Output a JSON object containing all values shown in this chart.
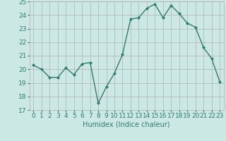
{
  "x": [
    0,
    1,
    2,
    3,
    4,
    5,
    6,
    7,
    8,
    9,
    10,
    11,
    12,
    13,
    14,
    15,
    16,
    17,
    18,
    19,
    20,
    21,
    22,
    23
  ],
  "y": [
    20.3,
    20.0,
    19.4,
    19.4,
    20.1,
    19.6,
    20.4,
    20.5,
    17.5,
    18.7,
    19.7,
    21.1,
    23.7,
    23.8,
    24.5,
    24.8,
    23.8,
    24.7,
    24.1,
    23.4,
    23.1,
    21.6,
    20.8,
    19.1
  ],
  "line_color": "#2e7d6e",
  "marker": "D",
  "marker_size": 2.0,
  "linewidth": 1.0,
  "xlabel": "Humidex (Indice chaleur)",
  "ylabel": "",
  "title": "",
  "xlim": [
    -0.5,
    23.5
  ],
  "ylim": [
    17,
    25
  ],
  "yticks": [
    17,
    18,
    19,
    20,
    21,
    22,
    23,
    24,
    25
  ],
  "xticks": [
    0,
    1,
    2,
    3,
    4,
    5,
    6,
    7,
    8,
    9,
    10,
    11,
    12,
    13,
    14,
    15,
    16,
    17,
    18,
    19,
    20,
    21,
    22,
    23
  ],
  "bg_color": "#cce8e4",
  "grid_color": "#b0b0b0",
  "tick_color": "#2e7d6e",
  "label_color": "#2e7d6e",
  "font_size": 6.5,
  "xlabel_fontsize": 7.0
}
